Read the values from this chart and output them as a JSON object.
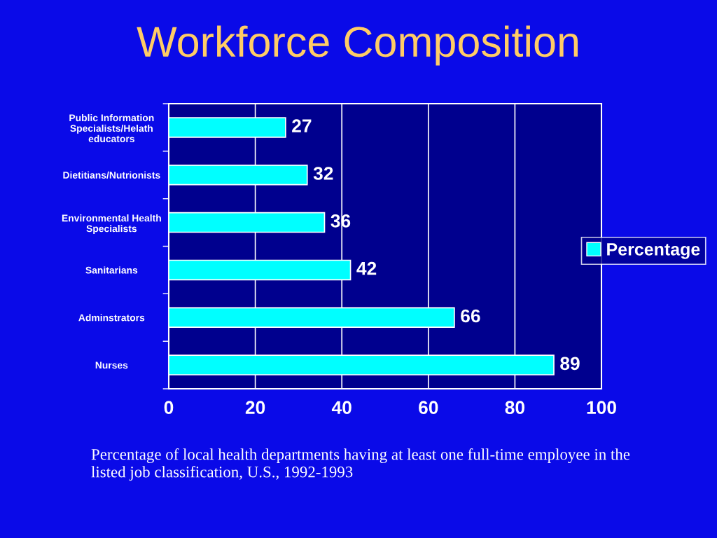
{
  "chart_data": {
    "type": "bar",
    "orientation": "horizontal",
    "title": "Workforce Composition",
    "categories": [
      "Public Information\nSpecialists/Helath\neducators",
      "Dietitians/Nutrionists",
      "Environmental Health\nSpecialists",
      "Sanitarians",
      "Adminstrators",
      "Nurses"
    ],
    "series": [
      {
        "name": "Percentage",
        "color": "#00ffff",
        "values": [
          27,
          32,
          36,
          42,
          66,
          89
        ]
      }
    ],
    "xlim": [
      0,
      100
    ],
    "xticks": [
      0,
      20,
      40,
      60,
      80,
      100
    ],
    "grid": "x",
    "legend": "right",
    "data_labels": true,
    "annotations": [
      "Percentage of local health departments having at least one full-time employee in the listed job classification, U.S., 1992-1993"
    ]
  }
}
